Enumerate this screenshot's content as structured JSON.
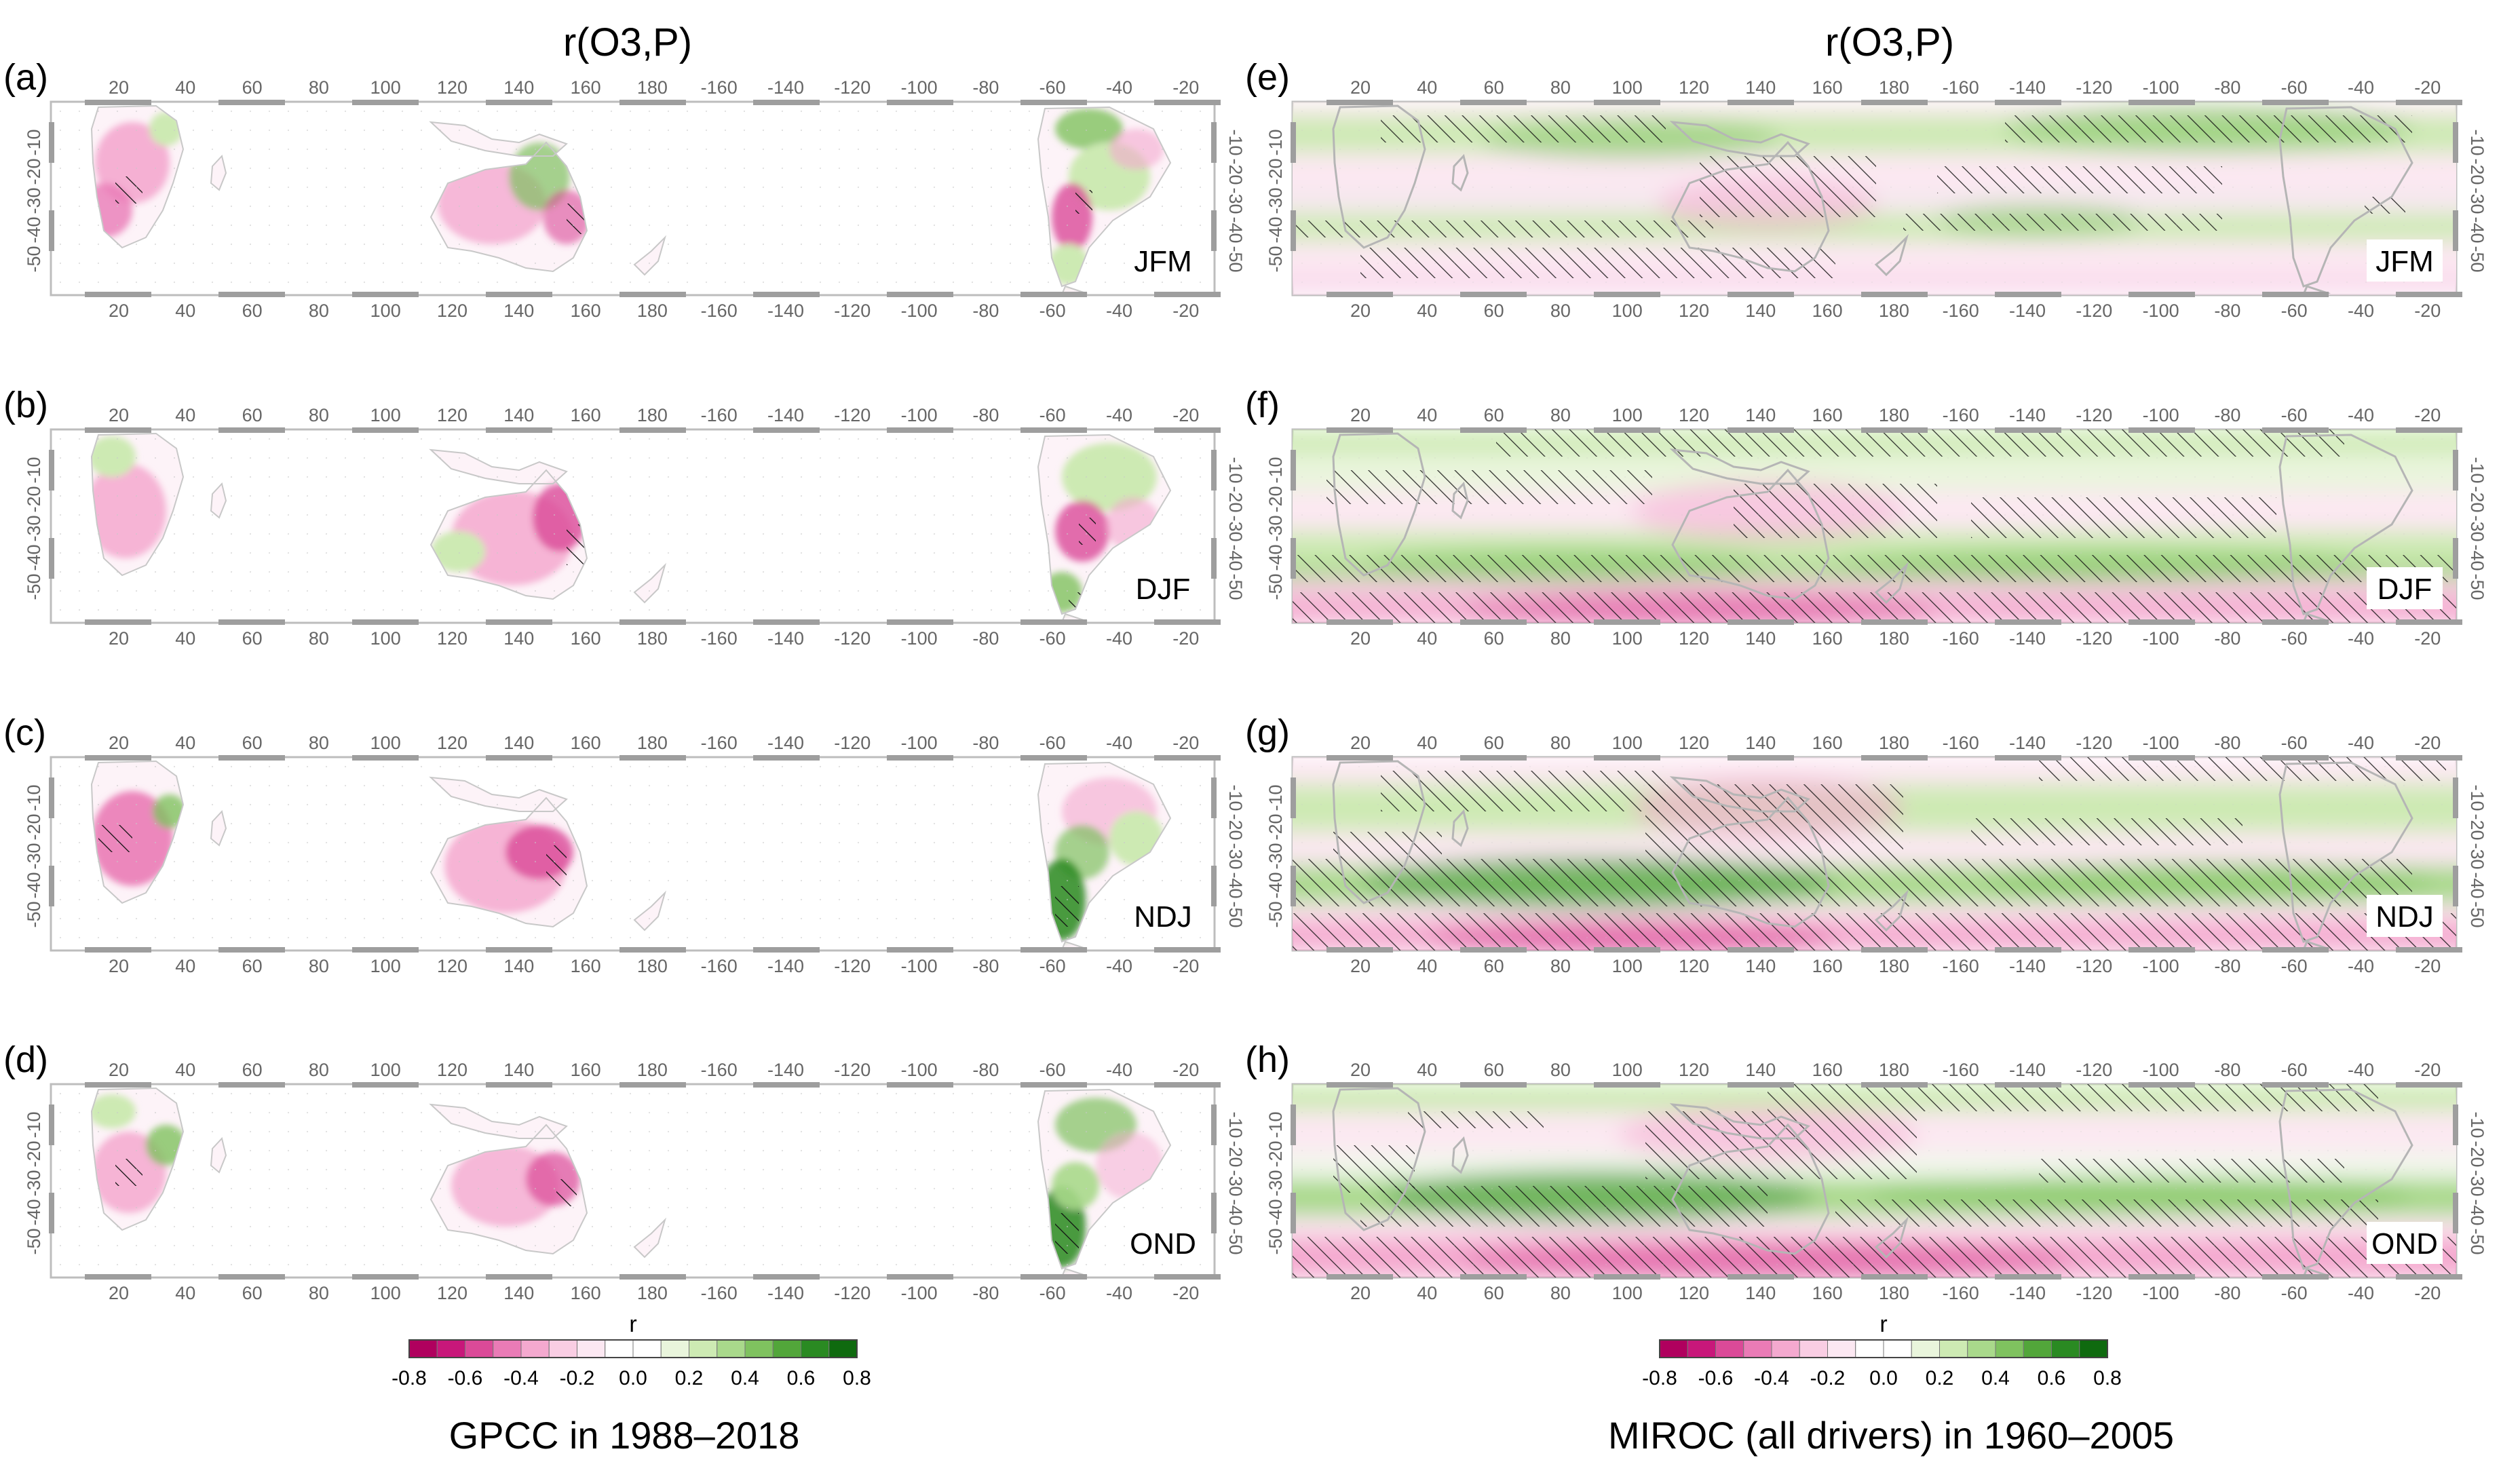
{
  "figure": {
    "left_title": "r(O3,P)",
    "right_title": "r(O3,P)",
    "left_caption": "GPCC in 1988–2018",
    "right_caption": "MIROC (all drivers) in 1960–2005"
  },
  "chart_data": [
    {
      "type": "heatmap",
      "panel": "(a)",
      "dataset": "GPCC",
      "season": "JFM",
      "title": "r(O3,P)",
      "coverage": "land",
      "hatched": "significant",
      "xlabel": "",
      "ylabel": "",
      "xlim": [
        0,
        340
      ],
      "ylim": [
        -58,
        2
      ],
      "xticks": [
        "20",
        "40",
        "60",
        "80",
        "100",
        "120",
        "140",
        "160",
        "180",
        "-160",
        "-140",
        "-120",
        "-100",
        "-80",
        "-60",
        "-40",
        "-20"
      ],
      "yticks": [
        "-10",
        "-20",
        "-30",
        "-40",
        "-50"
      ]
    },
    {
      "type": "heatmap",
      "panel": "(b)",
      "dataset": "GPCC",
      "season": "DJF",
      "title": "",
      "coverage": "land",
      "hatched": "significant",
      "xlabel": "",
      "ylabel": "",
      "xlim": [
        0,
        340
      ],
      "ylim": [
        -58,
        2
      ],
      "xticks": [
        "20",
        "40",
        "60",
        "80",
        "100",
        "120",
        "140",
        "160",
        "180",
        "-160",
        "-140",
        "-120",
        "-100",
        "-80",
        "-60",
        "-40",
        "-20"
      ],
      "yticks": [
        "-10",
        "-20",
        "-30",
        "-40",
        "-50"
      ]
    },
    {
      "type": "heatmap",
      "panel": "(c)",
      "dataset": "GPCC",
      "season": "NDJ",
      "title": "",
      "coverage": "land",
      "hatched": "significant",
      "xlabel": "",
      "ylabel": "",
      "xlim": [
        0,
        340
      ],
      "ylim": [
        -58,
        2
      ],
      "xticks": [
        "20",
        "40",
        "60",
        "80",
        "100",
        "120",
        "140",
        "160",
        "180",
        "-160",
        "-140",
        "-120",
        "-100",
        "-80",
        "-60",
        "-40",
        "-20"
      ],
      "yticks": [
        "-10",
        "-20",
        "-30",
        "-40",
        "-50"
      ]
    },
    {
      "type": "heatmap",
      "panel": "(d)",
      "dataset": "GPCC",
      "season": "OND",
      "title": "",
      "coverage": "land",
      "hatched": "significant",
      "xlabel": "",
      "ylabel": "",
      "xlim": [
        0,
        340
      ],
      "ylim": [
        -58,
        2
      ],
      "xticks": [
        "20",
        "40",
        "60",
        "80",
        "100",
        "120",
        "140",
        "160",
        "180",
        "-160",
        "-140",
        "-120",
        "-100",
        "-80",
        "-60",
        "-40",
        "-20"
      ],
      "yticks": [
        "-10",
        "-20",
        "-30",
        "-40",
        "-50"
      ]
    },
    {
      "type": "heatmap",
      "panel": "(e)",
      "dataset": "MIROC",
      "season": "JFM",
      "title": "r(O3,P)",
      "coverage": "global",
      "hatched": "significant",
      "xlabel": "",
      "ylabel": "",
      "xlim": [
        0,
        340
      ],
      "ylim": [
        -58,
        2
      ],
      "xticks": [
        "20",
        "40",
        "60",
        "80",
        "100",
        "120",
        "140",
        "160",
        "180",
        "-160",
        "-140",
        "-120",
        "-100",
        "-80",
        "-60",
        "-40",
        "-20"
      ],
      "yticks": [
        "-10",
        "-20",
        "-30",
        "-40",
        "-50"
      ]
    },
    {
      "type": "heatmap",
      "panel": "(f)",
      "dataset": "MIROC",
      "season": "DJF",
      "title": "",
      "coverage": "global",
      "hatched": "significant",
      "xlabel": "",
      "ylabel": "",
      "xlim": [
        0,
        340
      ],
      "ylim": [
        -58,
        2
      ],
      "xticks": [
        "20",
        "40",
        "60",
        "80",
        "100",
        "120",
        "140",
        "160",
        "180",
        "-160",
        "-140",
        "-120",
        "-100",
        "-80",
        "-60",
        "-40",
        "-20"
      ],
      "yticks": [
        "-10",
        "-20",
        "-30",
        "-40",
        "-50"
      ]
    },
    {
      "type": "heatmap",
      "panel": "(g)",
      "dataset": "MIROC",
      "season": "NDJ",
      "title": "",
      "coverage": "global",
      "hatched": "significant",
      "xlabel": "",
      "ylabel": "",
      "xlim": [
        0,
        340
      ],
      "ylim": [
        -58,
        2
      ],
      "xticks": [
        "20",
        "40",
        "60",
        "80",
        "100",
        "120",
        "140",
        "160",
        "180",
        "-160",
        "-140",
        "-120",
        "-100",
        "-80",
        "-60",
        "-40",
        "-20"
      ],
      "yticks": [
        "-10",
        "-20",
        "-30",
        "-40",
        "-50"
      ]
    },
    {
      "type": "heatmap",
      "panel": "(h)",
      "dataset": "MIROC",
      "season": "OND",
      "title": "",
      "coverage": "global",
      "hatched": "significant",
      "xlabel": "",
      "ylabel": "",
      "xlim": [
        0,
        340
      ],
      "ylim": [
        -58,
        2
      ],
      "xticks": [
        "20",
        "40",
        "60",
        "80",
        "100",
        "120",
        "140",
        "160",
        "180",
        "-160",
        "-140",
        "-120",
        "-100",
        "-80",
        "-60",
        "-40",
        "-20"
      ],
      "yticks": [
        "-10",
        "-20",
        "-30",
        "-40",
        "-50"
      ]
    }
  ],
  "colorbar": {
    "label": "r",
    "ticks": [
      "-0.8",
      "-0.6",
      "-0.4",
      "-0.2",
      "0.0",
      "0.2",
      "0.4",
      "0.6",
      "0.8"
    ],
    "colors": [
      "#b0005e",
      "#c8177a",
      "#db4a98",
      "#ea7bb6",
      "#f4a9cf",
      "#f9cde3",
      "#fce8f2",
      "#ffffff",
      "#ffffff",
      "#e9f5dc",
      "#cdeab3",
      "#a9d98b",
      "#7fc25f",
      "#52a63a",
      "#2a8a22",
      "#0f6a0f"
    ]
  }
}
